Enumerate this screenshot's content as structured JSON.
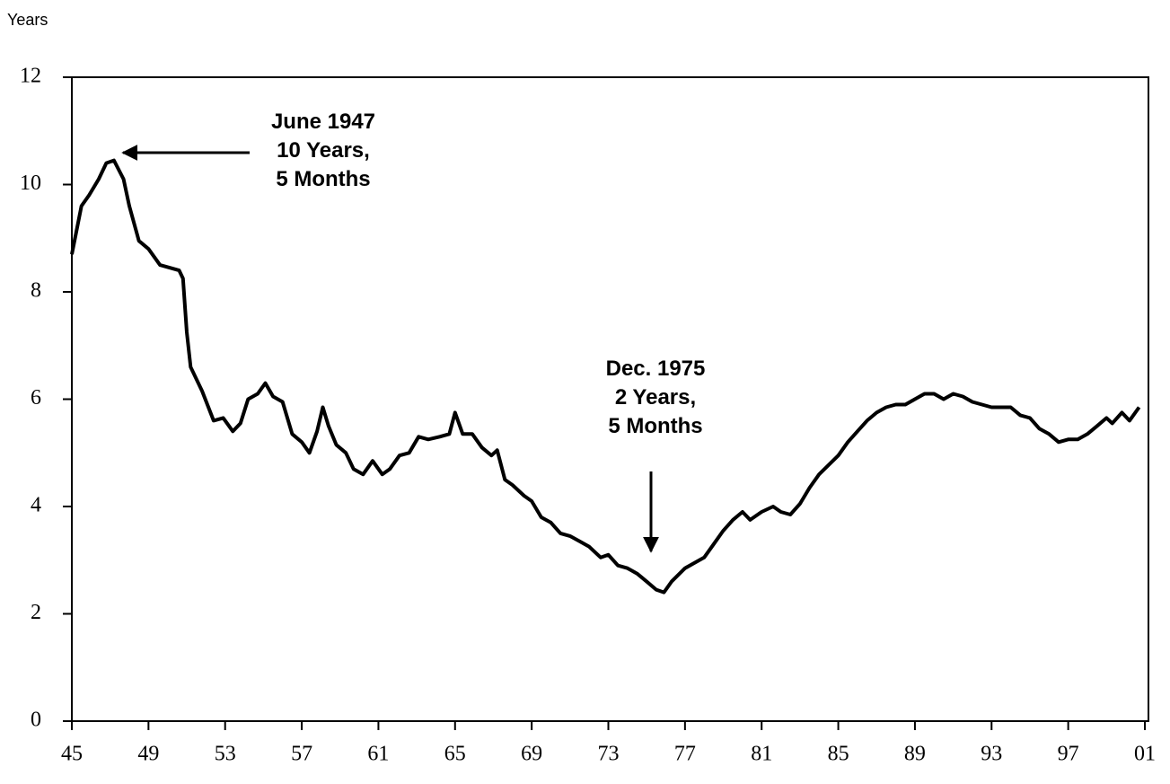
{
  "chart_data": {
    "type": "line",
    "y_label": "Years",
    "x": [
      1945.0,
      1945.5,
      1945.9,
      1946.4,
      1946.8,
      1947.2,
      1947.7,
      1948.0,
      1948.5,
      1949.0,
      1949.6,
      1950.6,
      1950.8,
      1951.0,
      1951.2,
      1951.8,
      1952.4,
      1952.9,
      1953.4,
      1953.8,
      1954.2,
      1954.7,
      1955.1,
      1955.5,
      1956.0,
      1956.5,
      1957.0,
      1957.4,
      1957.8,
      1958.1,
      1958.4,
      1958.8,
      1959.3,
      1959.7,
      1960.2,
      1960.7,
      1961.2,
      1961.6,
      1962.1,
      1962.6,
      1963.1,
      1963.6,
      1964.2,
      1964.7,
      1965.0,
      1965.4,
      1965.9,
      1966.4,
      1966.9,
      1967.2,
      1967.6,
      1968.0,
      1968.6,
      1969.0,
      1969.5,
      1970.0,
      1970.5,
      1971.0,
      1971.5,
      1972.0,
      1972.6,
      1973.0,
      1973.5,
      1974.0,
      1974.5,
      1975.0,
      1975.5,
      1975.9,
      1976.3,
      1977.0,
      1977.5,
      1978.0,
      1978.5,
      1979.0,
      1979.5,
      1980.0,
      1980.4,
      1981.0,
      1981.6,
      1982.0,
      1982.5,
      1983.0,
      1983.5,
      1984.0,
      1985.0,
      1985.5,
      1986.0,
      1986.5,
      1987.0,
      1987.5,
      1988.0,
      1988.5,
      1989.0,
      1989.5,
      1990.0,
      1990.5,
      1991.0,
      1991.5,
      1992.0,
      1993.0,
      1994.0,
      1994.5,
      1995.0,
      1995.5,
      1996.0,
      1996.5,
      1997.0,
      1997.5,
      1998.0,
      1998.5,
      1999.0,
      1999.3,
      1999.8,
      2000.2,
      2000.7
    ],
    "series": [
      {
        "color": "#000000",
        "values": [
          8.7,
          9.6,
          9.8,
          10.1,
          10.4,
          10.45,
          10.1,
          9.6,
          8.95,
          8.8,
          8.5,
          8.4,
          8.25,
          7.25,
          6.6,
          6.15,
          5.6,
          5.65,
          5.4,
          5.55,
          6.0,
          6.1,
          6.3,
          6.05,
          5.95,
          5.35,
          5.2,
          5.0,
          5.4,
          5.85,
          5.5,
          5.15,
          5.0,
          4.7,
          4.6,
          4.85,
          4.6,
          4.7,
          4.95,
          5.0,
          5.3,
          5.25,
          5.3,
          5.35,
          5.75,
          5.35,
          5.35,
          5.1,
          4.95,
          5.05,
          4.5,
          4.4,
          4.2,
          4.1,
          3.8,
          3.7,
          3.5,
          3.45,
          3.35,
          3.25,
          3.05,
          3.1,
          2.9,
          2.85,
          2.75,
          2.6,
          2.45,
          2.4,
          2.6,
          2.85,
          2.95,
          3.05,
          3.3,
          3.55,
          3.75,
          3.9,
          3.75,
          3.9,
          4.0,
          3.9,
          3.85,
          4.05,
          4.35,
          4.6,
          4.95,
          5.2,
          5.4,
          5.6,
          5.75,
          5.85,
          5.9,
          5.9,
          6.0,
          6.1,
          6.1,
          6.0,
          6.1,
          6.05,
          5.95,
          5.85,
          5.85,
          5.7,
          5.65,
          5.45,
          5.35,
          5.2,
          5.25,
          5.25,
          5.35,
          5.5,
          5.65,
          5.55,
          5.75,
          5.6,
          5.85
        ]
      }
    ],
    "xlim": [
      1945,
      2001
    ],
    "xticks": [
      {
        "value": 1945,
        "label": "45"
      },
      {
        "value": 1949,
        "label": "49"
      },
      {
        "value": 1953,
        "label": "53"
      },
      {
        "value": 1957,
        "label": "57"
      },
      {
        "value": 1961,
        "label": "61"
      },
      {
        "value": 1965,
        "label": "65"
      },
      {
        "value": 1969,
        "label": "69"
      },
      {
        "value": 1973,
        "label": "73"
      },
      {
        "value": 1977,
        "label": "77"
      },
      {
        "value": 1981,
        "label": "81"
      },
      {
        "value": 1985,
        "label": "85"
      },
      {
        "value": 1989,
        "label": "89"
      },
      {
        "value": 1993,
        "label": "93"
      },
      {
        "value": 1997,
        "label": "97"
      },
      {
        "value": 2001,
        "label": "01"
      }
    ],
    "ylim": [
      0,
      12
    ],
    "yticks": [
      0,
      2,
      4,
      6,
      8,
      10,
      12
    ],
    "annotations": [
      {
        "lines": [
          "June 1947",
          "10 Years,",
          "5 Months"
        ]
      },
      {
        "lines": [
          "Dec. 1975",
          "2 Years,",
          "5 Months"
        ]
      }
    ]
  }
}
